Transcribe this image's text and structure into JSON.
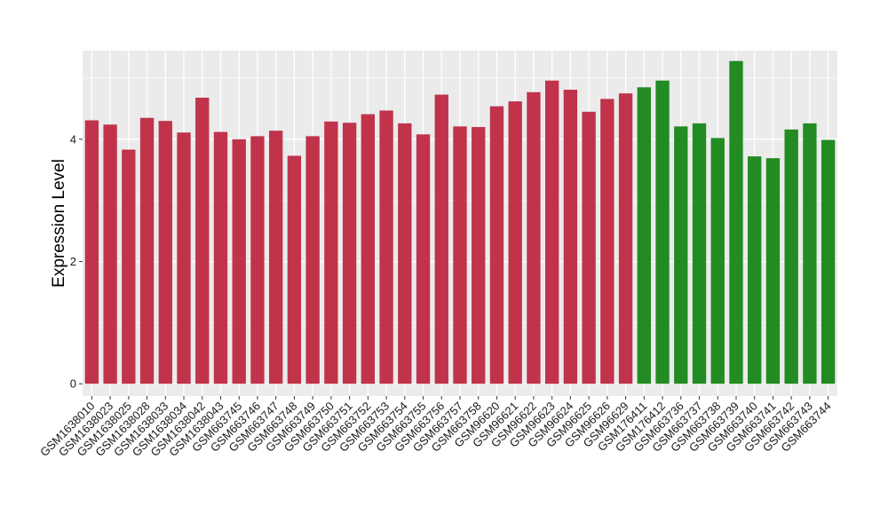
{
  "chart_data": {
    "type": "bar",
    "title": "",
    "xlabel": "",
    "ylabel": "Expression Level",
    "ylim": [
      -0.2,
      5.45
    ],
    "yticks": [
      0,
      2,
      4
    ],
    "grid": true,
    "legend": "none",
    "categories": [
      "GSM1638010",
      "GSM1638023",
      "GSM1638025",
      "GSM1638028",
      "GSM1638033",
      "GSM1638034",
      "GSM1638042",
      "GSM1638043",
      "GSM663745",
      "GSM663746",
      "GSM663747",
      "GSM663748",
      "GSM663749",
      "GSM663750",
      "GSM663751",
      "GSM663752",
      "GSM663753",
      "GSM663754",
      "GSM663755",
      "GSM663756",
      "GSM663757",
      "GSM663758",
      "GSM96620",
      "GSM96621",
      "GSM96622",
      "GSM96623",
      "GSM96624",
      "GSM96625",
      "GSM96626",
      "GSM96629",
      "GSM176411",
      "GSM176412",
      "GSM663736",
      "GSM663737",
      "GSM663738",
      "GSM663739",
      "GSM663740",
      "GSM663741",
      "GSM663742",
      "GSM663743",
      "GSM663744"
    ],
    "values": [
      4.31,
      4.24,
      3.83,
      4.35,
      4.3,
      4.11,
      4.68,
      4.12,
      4.0,
      4.05,
      4.14,
      3.73,
      4.05,
      4.29,
      4.27,
      4.41,
      4.47,
      4.26,
      4.08,
      4.73,
      4.21,
      4.2,
      4.54,
      4.62,
      4.77,
      4.96,
      4.81,
      4.45,
      4.66,
      4.75,
      4.85,
      4.96,
      4.21,
      4.26,
      4.02,
      5.28,
      3.72,
      3.69,
      4.16,
      4.26,
      3.99
    ],
    "colors": [
      "#c0334b",
      "#c0334b",
      "#c0334b",
      "#c0334b",
      "#c0334b",
      "#c0334b",
      "#c0334b",
      "#c0334b",
      "#c0334b",
      "#c0334b",
      "#c0334b",
      "#c0334b",
      "#c0334b",
      "#c0334b",
      "#c0334b",
      "#c0334b",
      "#c0334b",
      "#c0334b",
      "#c0334b",
      "#c0334b",
      "#c0334b",
      "#c0334b",
      "#c0334b",
      "#c0334b",
      "#c0334b",
      "#c0334b",
      "#c0334b",
      "#c0334b",
      "#c0334b",
      "#c0334b",
      "#228b22",
      "#228b22",
      "#228b22",
      "#228b22",
      "#228b22",
      "#228b22",
      "#228b22",
      "#228b22",
      "#228b22",
      "#228b22",
      "#228b22"
    ],
    "panel_background": "#ebebeb",
    "gridline_color": "#ffffff"
  }
}
